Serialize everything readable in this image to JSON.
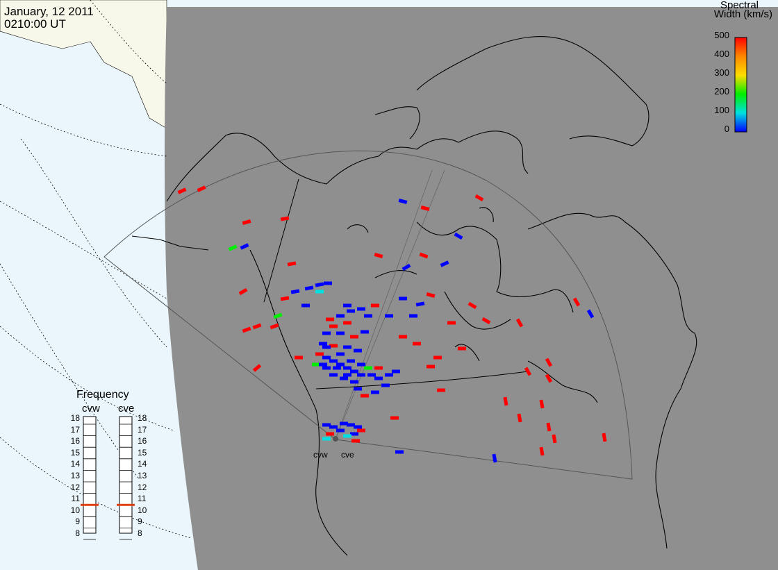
{
  "header": {
    "date": "January, 12 2011",
    "time": "0210:00 UT"
  },
  "colorbar": {
    "title_line1": "Spectral",
    "title_line2": "Width (km/s)",
    "ticks": [
      "500",
      "400",
      "300",
      "200",
      "100",
      "0"
    ],
    "colors": [
      "#ff0000",
      "#ff8800",
      "#ffdd00",
      "#00ee00",
      "#00e0e0",
      "#0000ff"
    ]
  },
  "frequency": {
    "title": "Frequency",
    "radars": [
      {
        "name": "cvw",
        "selected": "11"
      },
      {
        "name": "cve",
        "selected": "11"
      }
    ],
    "levels": [
      "18",
      "17",
      "16",
      "15",
      "14",
      "13",
      "12",
      "11",
      "10",
      "9",
      "8"
    ]
  },
  "radar_sites": [
    {
      "name": "cvw"
    },
    {
      "name": "cve"
    }
  ],
  "colors": {
    "ocean": "#eaf6fb",
    "land_gray": "#8f8f8f",
    "land_beige": "#f8f8ea",
    "echo_high": "#ff0000",
    "echo_low": "#0000ff",
    "frequency_marker": "#e04010"
  }
}
